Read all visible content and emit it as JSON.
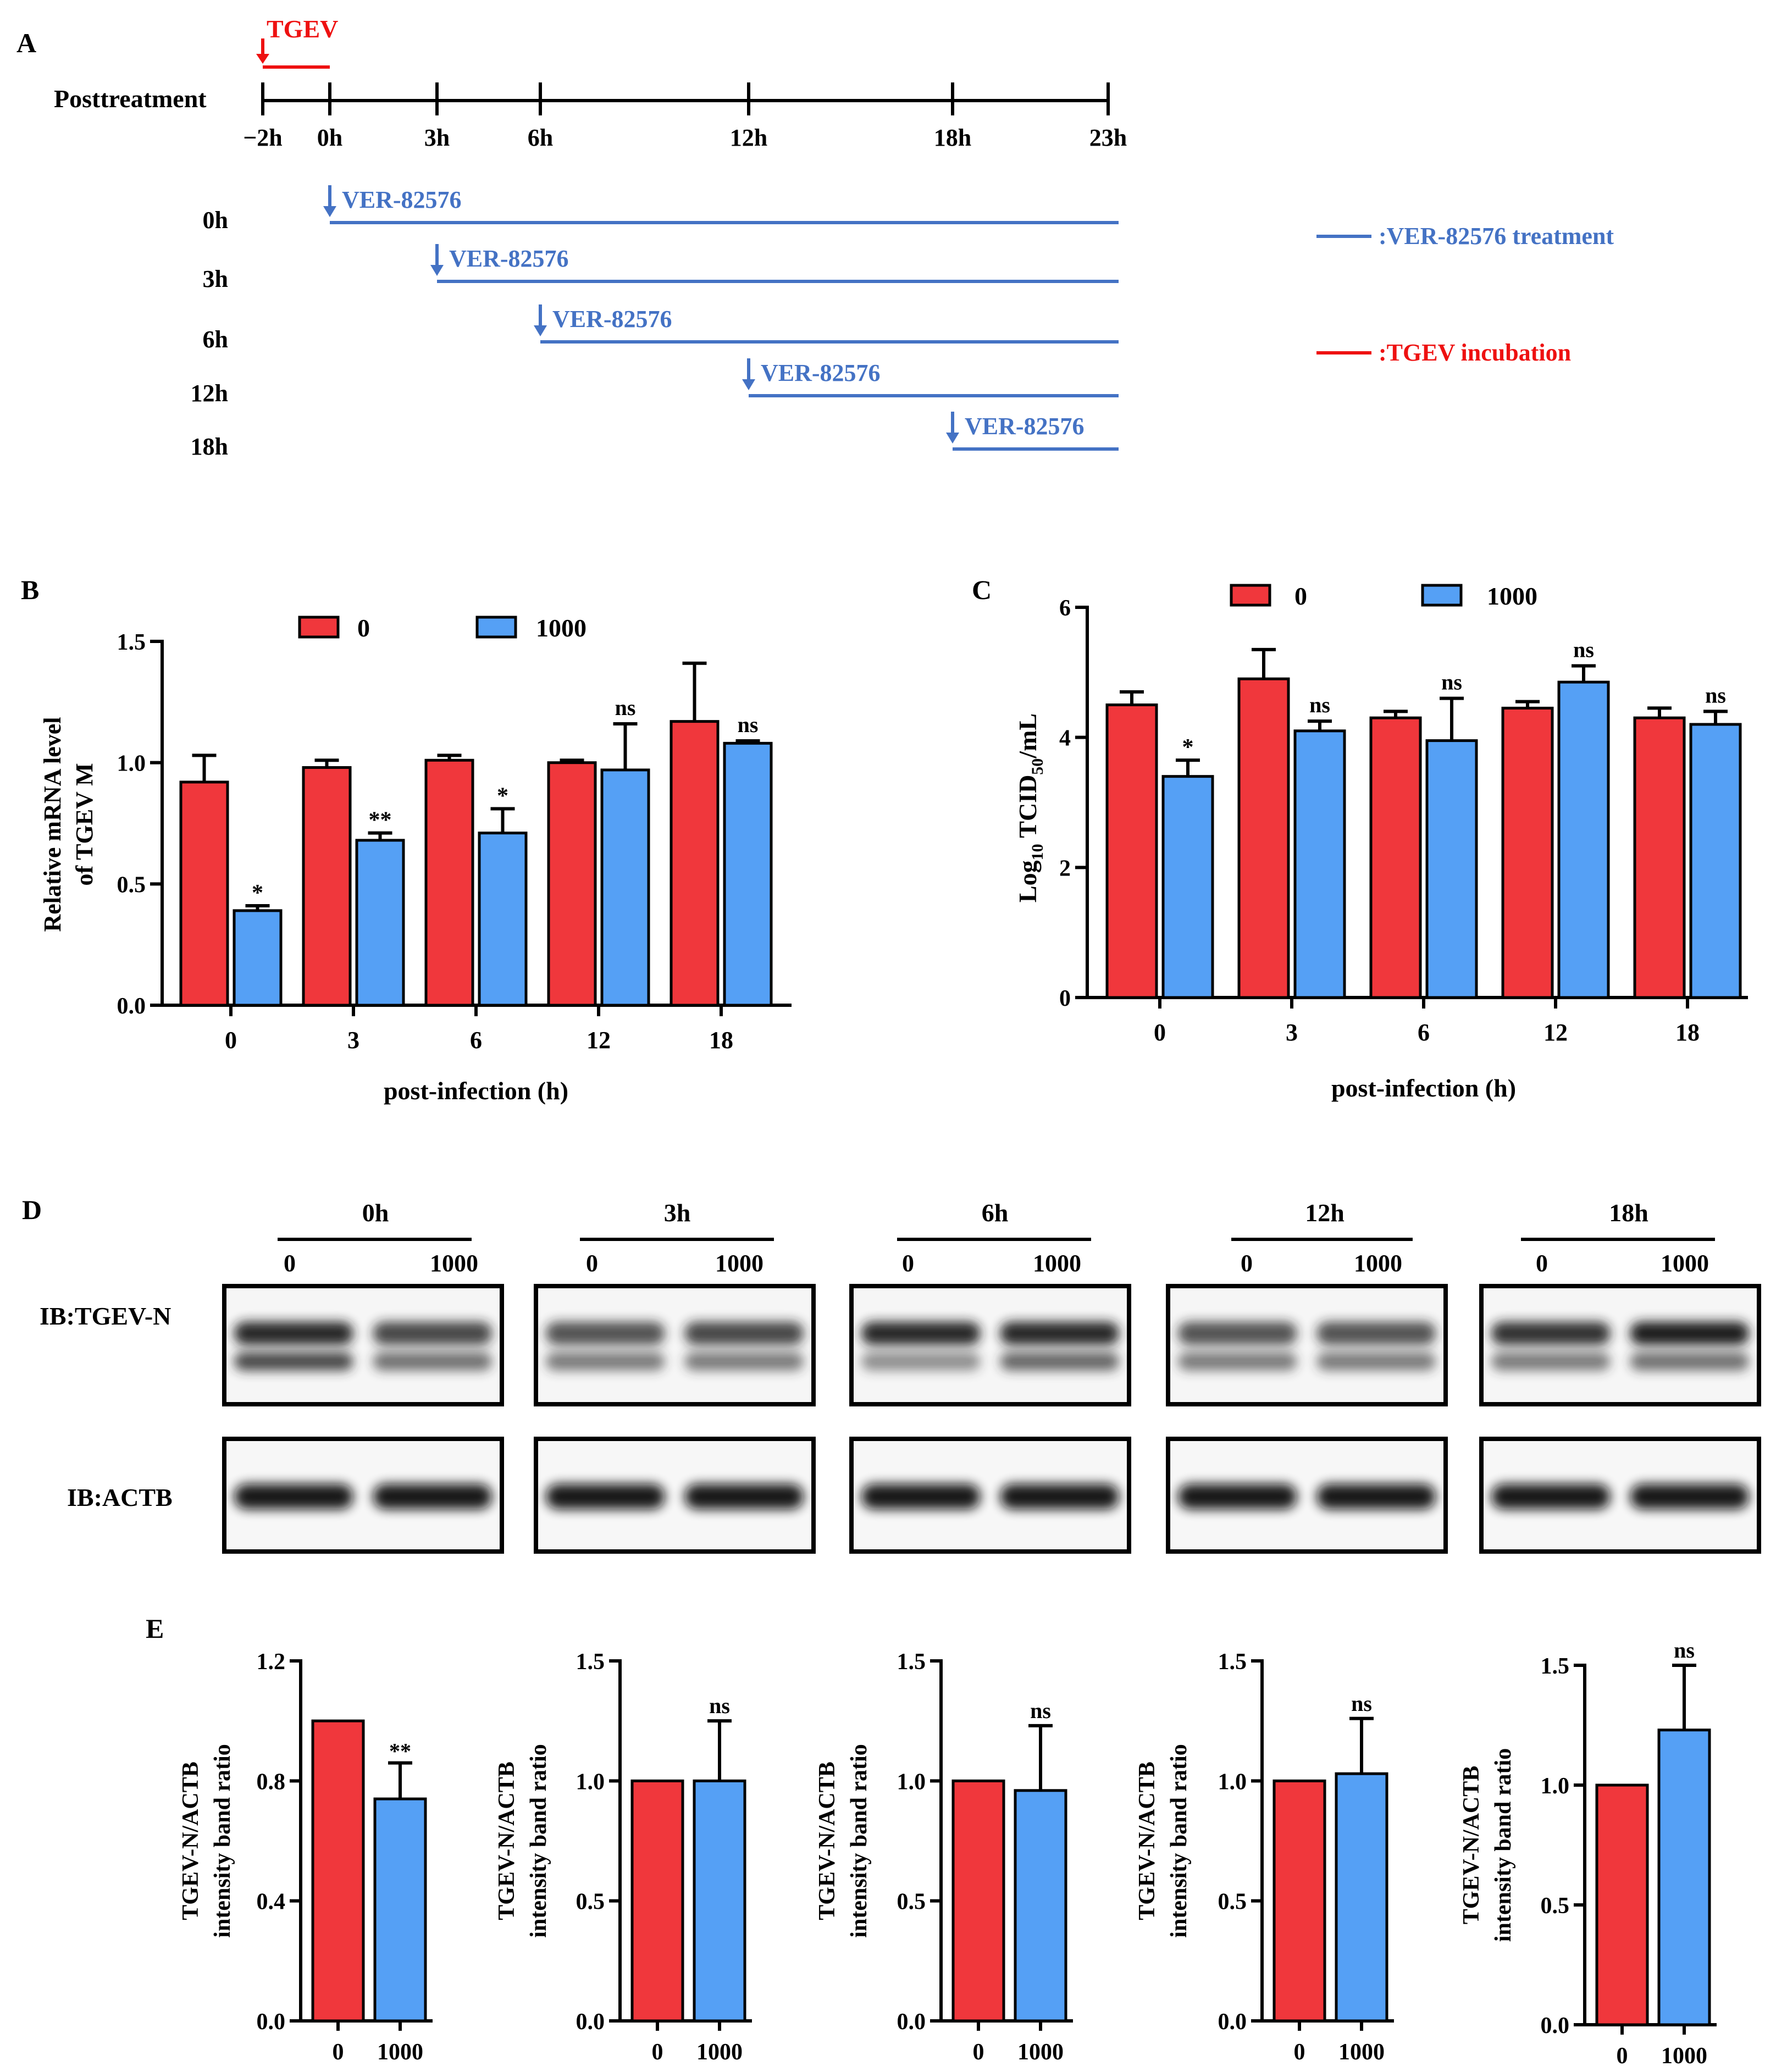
{
  "colors": {
    "red": "#f0373c",
    "blue": "#55a0f5",
    "blue_line": "#4472c4",
    "red_line": "#ee1111",
    "black": "#000000"
  },
  "panel_labels": {
    "a": "A",
    "b": "B",
    "c": "C",
    "d": "D",
    "e": "E"
  },
  "panel_a": {
    "virus_label": "TGEV",
    "row_label": "Posttreatment",
    "timepoints": [
      "−2h",
      "0h",
      "3h",
      "6h",
      "12h",
      "18h",
      "23h"
    ],
    "treatments": [
      {
        "label": "0h",
        "drug": "VER-82576"
      },
      {
        "label": "3h",
        "drug": "VER-82576"
      },
      {
        "label": "6h",
        "drug": "VER-82576"
      },
      {
        "label": "12h",
        "drug": "VER-82576"
      },
      {
        "label": "18h",
        "drug": "VER-82576"
      }
    ],
    "legend": [
      {
        "text": ":VER-82576 treatment",
        "color": "#4472c4"
      },
      {
        "text": ":TGEV incubation",
        "color": "#ee1111"
      }
    ]
  },
  "chart_data": [
    {
      "id": "B",
      "type": "bar",
      "categories": [
        "0",
        "3",
        "6",
        "12",
        "18"
      ],
      "series": [
        {
          "name": "0",
          "color": "#f0373c",
          "values": [
            0.92,
            0.98,
            1.01,
            1.0,
            1.17
          ],
          "errors": [
            0.11,
            0.03,
            0.02,
            0.01,
            0.24
          ]
        },
        {
          "name": "1000",
          "color": "#55a0f5",
          "values": [
            0.39,
            0.68,
            0.71,
            0.97,
            1.08
          ],
          "errors": [
            0.02,
            0.03,
            0.1,
            0.19,
            0.01
          ]
        }
      ],
      "significance": [
        "*",
        "**",
        "*",
        "ns",
        "ns"
      ],
      "ylim": [
        0,
        1.5
      ],
      "yticks": [
        "0.0",
        "0.5",
        "1.0",
        "1.5"
      ],
      "ylabel_line1": "Relative mRNA level",
      "ylabel_line2": "of TGEV M",
      "xlabel": "post-infection (h)"
    },
    {
      "id": "C",
      "type": "bar",
      "categories": [
        "0",
        "3",
        "6",
        "12",
        "18"
      ],
      "series": [
        {
          "name": "0",
          "color": "#f0373c",
          "values": [
            4.5,
            4.9,
            4.3,
            4.45,
            4.3
          ],
          "errors": [
            0.2,
            0.45,
            0.1,
            0.1,
            0.15
          ]
        },
        {
          "name": "1000",
          "color": "#55a0f5",
          "values": [
            3.4,
            4.1,
            3.95,
            4.85,
            4.2
          ],
          "errors": [
            0.25,
            0.15,
            0.65,
            0.25,
            0.2
          ]
        }
      ],
      "significance": [
        "*",
        "ns",
        "ns",
        "ns",
        "ns"
      ],
      "ylim": [
        0,
        6
      ],
      "yticks": [
        "0",
        "2",
        "4",
        "6"
      ],
      "ylabel_log": "Log",
      "ylabel_log_sub": "10",
      "ylabel_tcid": " TCID",
      "ylabel_tcid_sub": "50",
      "ylabel_tail": "/mL",
      "xlabel": "post-infection (h)"
    },
    {
      "id": "E1",
      "type": "bar",
      "categories": [
        "0",
        "1000"
      ],
      "values": [
        1.0,
        0.74
      ],
      "error_1000": 0.12,
      "significance": "**",
      "ylim": [
        0,
        1.2
      ],
      "yticks": [
        "0.0",
        "0.4",
        "0.8",
        "1.2"
      ],
      "ylabel_line1": "TGEV-N/ACTB",
      "ylabel_line2": "intensity band ratio"
    },
    {
      "id": "E2",
      "type": "bar",
      "categories": [
        "0",
        "1000"
      ],
      "values": [
        1.0,
        1.0
      ],
      "error_1000": 0.25,
      "significance": "ns",
      "ylim": [
        0,
        1.5
      ],
      "yticks": [
        "0.0",
        "0.5",
        "1.0",
        "1.5"
      ],
      "ylabel_line1": "TGEV-N/ACTB",
      "ylabel_line2": "intensity band ratio"
    },
    {
      "id": "E3",
      "type": "bar",
      "categories": [
        "0",
        "1000"
      ],
      "values": [
        1.0,
        0.96
      ],
      "error_1000": 0.27,
      "significance": "ns",
      "ylim": [
        0,
        1.5
      ],
      "yticks": [
        "0.0",
        "0.5",
        "1.0",
        "1.5"
      ],
      "ylabel_line1": "TGEV-N/ACTB",
      "ylabel_line2": "intensity band ratio"
    },
    {
      "id": "E4",
      "type": "bar",
      "categories": [
        "0",
        "1000"
      ],
      "values": [
        1.0,
        1.03
      ],
      "error_1000": 0.23,
      "significance": "ns",
      "ylim": [
        0,
        1.5
      ],
      "yticks": [
        "0.0",
        "0.5",
        "1.0",
        "1.5"
      ],
      "ylabel_line1": "TGEV-N/ACTB",
      "ylabel_line2": "intensity band ratio"
    },
    {
      "id": "E5",
      "type": "bar",
      "categories": [
        "0",
        "1000"
      ],
      "values": [
        1.0,
        1.23
      ],
      "error_1000": 0.27,
      "significance": "ns",
      "ylim": [
        0,
        1.5
      ],
      "yticks": [
        "0.0",
        "0.5",
        "1.0",
        "1.5"
      ],
      "ylabel_line1": "TGEV-N/ACTB",
      "ylabel_line2": "intensity band ratio"
    }
  ],
  "panel_d": {
    "row_labels": [
      "IB:TGEV-N",
      "IB:ACTB"
    ],
    "groups": [
      {
        "title": "0h",
        "lanes": [
          "0",
          "1000"
        ]
      },
      {
        "title": "3h",
        "lanes": [
          "0",
          "1000"
        ]
      },
      {
        "title": "6h",
        "lanes": [
          "0",
          "1000"
        ]
      },
      {
        "title": "12h",
        "lanes": [
          "0",
          "1000"
        ]
      },
      {
        "title": "18h",
        "lanes": [
          "0",
          "1000"
        ]
      }
    ]
  }
}
